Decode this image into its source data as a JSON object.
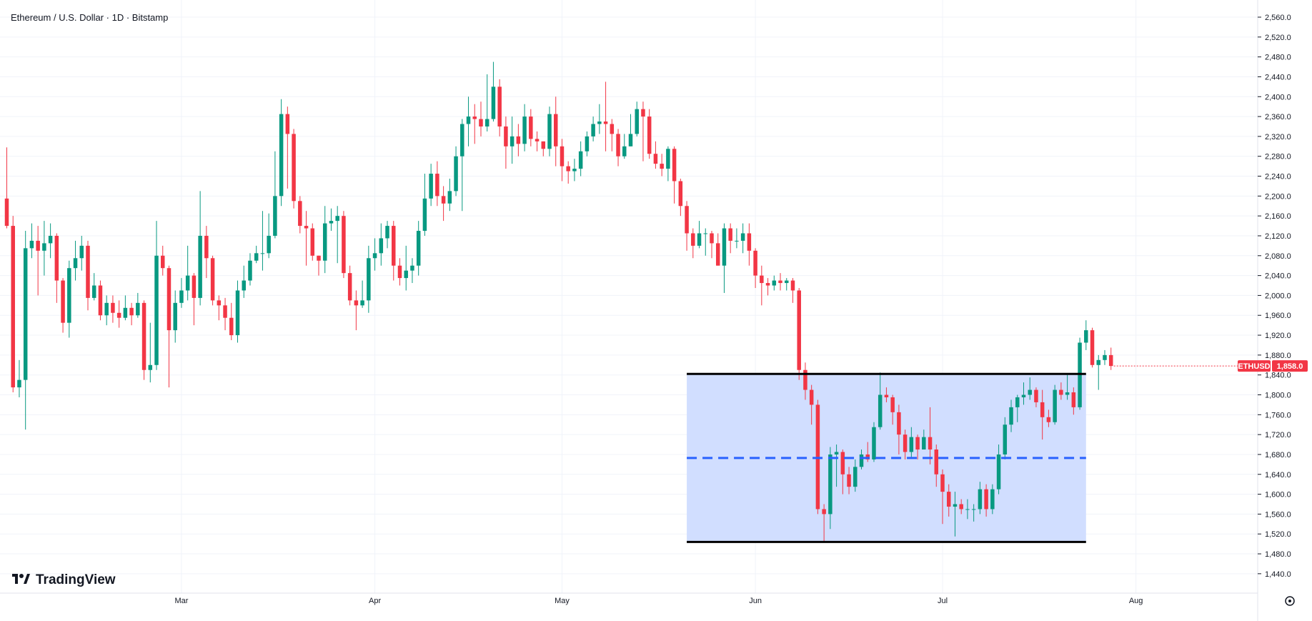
{
  "chart_data": {
    "type": "candlestick",
    "title": "Ethereum / U.S. Dollar · 1D · Bitstamp",
    "brand": "TradingView",
    "ylim": [
      1440,
      2560
    ],
    "y_ticks": [
      1440,
      1480,
      1520,
      1560,
      1600,
      1640,
      1680,
      1720,
      1760,
      1800,
      1840,
      1880,
      1920,
      1960,
      2000,
      2040,
      2080,
      2120,
      2160,
      2200,
      2240,
      2280,
      2320,
      2360,
      2400,
      2440,
      2480,
      2520,
      2560
    ],
    "x_ticks": [
      {
        "label": "Mar",
        "index": 28
      },
      {
        "label": "Apr",
        "index": 59
      },
      {
        "label": "May",
        "index": 89
      },
      {
        "label": "Jun",
        "index": 120
      },
      {
        "label": "Jul",
        "index": 150
      },
      {
        "label": "Aug",
        "index": 181
      }
    ],
    "last_price": {
      "symbol": "ETHUSD",
      "value": "1,858.0",
      "price": 1858
    },
    "colors": {
      "up": "#089981",
      "down": "#f23645",
      "zone_fill": "#cfdcff",
      "zone_line": "#000000",
      "midline": "#2962ff",
      "grid": "#f0f3fa"
    },
    "zone": {
      "start_index": 109,
      "end_index": 173,
      "top": 1842,
      "bottom": 1504,
      "mid": 1673
    },
    "candles": [
      [
        2195,
        2140,
        2298,
        2135
      ],
      [
        2140,
        1815,
        2160,
        1805
      ],
      [
        1815,
        1830,
        1870,
        1795
      ],
      [
        1830,
        2095,
        2130,
        1730
      ],
      [
        2095,
        2110,
        2145,
        2075
      ],
      [
        2110,
        2090,
        2140,
        2000
      ],
      [
        2090,
        2105,
        2150,
        2040
      ],
      [
        2105,
        2120,
        2145,
        2075
      ],
      [
        2120,
        2030,
        2125,
        1985
      ],
      [
        2030,
        1945,
        2035,
        1925
      ],
      [
        1945,
        2055,
        2070,
        1915
      ],
      [
        2055,
        2075,
        2110,
        2030
      ],
      [
        2075,
        2100,
        2120,
        2050
      ],
      [
        2100,
        1995,
        2110,
        1970
      ],
      [
        1995,
        2020,
        2045,
        1990
      ],
      [
        2020,
        1960,
        2030,
        1950
      ],
      [
        1960,
        1985,
        2000,
        1940
      ],
      [
        1985,
        1965,
        2000,
        1945
      ],
      [
        1965,
        1955,
        1990,
        1935
      ],
      [
        1955,
        1975,
        2000,
        1950
      ],
      [
        1975,
        1960,
        1985,
        1940
      ],
      [
        1960,
        1985,
        2005,
        1955
      ],
      [
        1985,
        1850,
        1990,
        1830
      ],
      [
        1850,
        1860,
        1945,
        1825
      ],
      [
        1860,
        2080,
        2150,
        1850
      ],
      [
        2080,
        2055,
        2100,
        2040
      ],
      [
        2055,
        1930,
        2060,
        1815
      ],
      [
        1930,
        1985,
        2010,
        1905
      ],
      [
        1985,
        2010,
        2035,
        1975
      ],
      [
        2010,
        2040,
        2100,
        1990
      ],
      [
        2040,
        1995,
        2045,
        1940
      ],
      [
        1995,
        2120,
        2210,
        1980
      ],
      [
        2120,
        2075,
        2140,
        2035
      ],
      [
        2075,
        1990,
        2080,
        1980
      ],
      [
        1990,
        1980,
        2000,
        1950
      ],
      [
        1980,
        1955,
        1995,
        1930
      ],
      [
        1955,
        1920,
        1985,
        1910
      ],
      [
        1920,
        2010,
        2030,
        1905
      ],
      [
        2010,
        2030,
        2060,
        1995
      ],
      [
        2030,
        2070,
        2085,
        2020
      ],
      [
        2070,
        2085,
        2100,
        2065
      ],
      [
        2085,
        2085,
        2170,
        2050
      ],
      [
        2085,
        2120,
        2165,
        2075
      ],
      [
        2120,
        2200,
        2290,
        2115
      ],
      [
        2200,
        2365,
        2395,
        2180
      ],
      [
        2365,
        2325,
        2380,
        2215
      ],
      [
        2325,
        2190,
        2335,
        2175
      ],
      [
        2190,
        2140,
        2200,
        2125
      ],
      [
        2140,
        2135,
        2170,
        2060
      ],
      [
        2135,
        2080,
        2145,
        2070
      ],
      [
        2080,
        2070,
        2080,
        2040
      ],
      [
        2070,
        2145,
        2180,
        2045
      ],
      [
        2145,
        2150,
        2175,
        2130
      ],
      [
        2150,
        2160,
        2180,
        2065
      ],
      [
        2160,
        2045,
        2170,
        2035
      ],
      [
        2045,
        1990,
        2060,
        1980
      ],
      [
        1990,
        1980,
        2010,
        1930
      ],
      [
        1980,
        1990,
        2030,
        1975
      ],
      [
        1990,
        2075,
        2100,
        1965
      ],
      [
        2075,
        2085,
        2115,
        2050
      ],
      [
        2085,
        2115,
        2145,
        2060
      ],
      [
        2115,
        2140,
        2150,
        2095
      ],
      [
        2140,
        2060,
        2150,
        2030
      ],
      [
        2060,
        2035,
        2075,
        2020
      ],
      [
        2035,
        2050,
        2100,
        2010
      ],
      [
        2050,
        2060,
        2075,
        2025
      ],
      [
        2060,
        2130,
        2150,
        2040
      ],
      [
        2130,
        2195,
        2245,
        2120
      ],
      [
        2195,
        2245,
        2265,
        2180
      ],
      [
        2245,
        2200,
        2270,
        2180
      ],
      [
        2200,
        2185,
        2220,
        2150
      ],
      [
        2185,
        2210,
        2235,
        2170
      ],
      [
        2210,
        2280,
        2300,
        2200
      ],
      [
        2280,
        2345,
        2355,
        2170
      ],
      [
        2345,
        2360,
        2400,
        2300
      ],
      [
        2360,
        2355,
        2385,
        2305
      ],
      [
        2355,
        2340,
        2390,
        2320
      ],
      [
        2340,
        2355,
        2445,
        2330
      ],
      [
        2355,
        2420,
        2470,
        2350
      ],
      [
        2420,
        2340,
        2435,
        2320
      ],
      [
        2340,
        2300,
        2360,
        2255
      ],
      [
        2300,
        2320,
        2360,
        2265
      ],
      [
        2320,
        2305,
        2345,
        2280
      ],
      [
        2305,
        2360,
        2385,
        2290
      ],
      [
        2360,
        2315,
        2375,
        2300
      ],
      [
        2315,
        2310,
        2330,
        2290
      ],
      [
        2310,
        2295,
        2310,
        2280
      ],
      [
        2295,
        2365,
        2380,
        2280
      ],
      [
        2365,
        2300,
        2400,
        2260
      ],
      [
        2300,
        2260,
        2315,
        2230
      ],
      [
        2260,
        2250,
        2270,
        2225
      ],
      [
        2250,
        2255,
        2275,
        2230
      ],
      [
        2255,
        2290,
        2310,
        2240
      ],
      [
        2290,
        2320,
        2330,
        2280
      ],
      [
        2320,
        2345,
        2360,
        2310
      ],
      [
        2345,
        2350,
        2385,
        2325
      ],
      [
        2350,
        2345,
        2430,
        2290
      ],
      [
        2345,
        2325,
        2355,
        2290
      ],
      [
        2325,
        2280,
        2335,
        2260
      ],
      [
        2280,
        2300,
        2325,
        2275
      ],
      [
        2300,
        2325,
        2365,
        2300
      ],
      [
        2325,
        2375,
        2390,
        2320
      ],
      [
        2375,
        2360,
        2390,
        2270
      ],
      [
        2360,
        2285,
        2375,
        2275
      ],
      [
        2285,
        2265,
        2310,
        2255
      ],
      [
        2265,
        2255,
        2285,
        2240
      ],
      [
        2255,
        2295,
        2300,
        2230
      ],
      [
        2295,
        2230,
        2300,
        2185
      ],
      [
        2230,
        2180,
        2235,
        2160
      ],
      [
        2180,
        2125,
        2190,
        2090
      ],
      [
        2125,
        2100,
        2135,
        2075
      ],
      [
        2100,
        2125,
        2150,
        2095
      ],
      [
        2125,
        2125,
        2135,
        2080
      ],
      [
        2125,
        2105,
        2130,
        2075
      ],
      [
        2105,
        2060,
        2125,
        2060
      ],
      [
        2060,
        2135,
        2145,
        2005
      ],
      [
        2135,
        2110,
        2145,
        2085
      ],
      [
        2110,
        2110,
        2135,
        2095
      ],
      [
        2110,
        2125,
        2145,
        2085
      ],
      [
        2125,
        2090,
        2145,
        2060
      ],
      [
        2090,
        2040,
        2095,
        2015
      ],
      [
        2040,
        2025,
        2060,
        1980
      ],
      [
        2025,
        2020,
        2035,
        2000
      ],
      [
        2020,
        2030,
        2040,
        2010
      ],
      [
        2030,
        2025,
        2045,
        2010
      ],
      [
        2025,
        2030,
        2035,
        2010
      ],
      [
        2030,
        2010,
        2035,
        1985
      ],
      [
        2010,
        1850,
        2015,
        1830
      ],
      [
        1850,
        1810,
        1865,
        1790
      ],
      [
        1810,
        1780,
        1820,
        1740
      ],
      [
        1780,
        1570,
        1790,
        1560
      ],
      [
        1570,
        1560,
        1580,
        1505
      ],
      [
        1560,
        1680,
        1695,
        1530
      ],
      [
        1680,
        1685,
        1700,
        1615
      ],
      [
        1685,
        1640,
        1690,
        1600
      ],
      [
        1640,
        1615,
        1655,
        1600
      ],
      [
        1615,
        1655,
        1670,
        1605
      ],
      [
        1655,
        1680,
        1690,
        1650
      ],
      [
        1680,
        1670,
        1705,
        1665
      ],
      [
        1670,
        1735,
        1745,
        1665
      ],
      [
        1735,
        1800,
        1845,
        1730
      ],
      [
        1800,
        1795,
        1815,
        1785
      ],
      [
        1795,
        1765,
        1800,
        1740
      ],
      [
        1765,
        1720,
        1780,
        1680
      ],
      [
        1720,
        1685,
        1730,
        1670
      ],
      [
        1685,
        1715,
        1735,
        1675
      ],
      [
        1715,
        1690,
        1720,
        1670
      ],
      [
        1690,
        1715,
        1730,
        1700
      ],
      [
        1715,
        1690,
        1775,
        1660
      ],
      [
        1690,
        1640,
        1700,
        1615
      ],
      [
        1640,
        1605,
        1650,
        1540
      ],
      [
        1605,
        1575,
        1620,
        1555
      ],
      [
        1575,
        1580,
        1605,
        1515
      ],
      [
        1580,
        1570,
        1590,
        1560
      ],
      [
        1570,
        1570,
        1590,
        1550
      ],
      [
        1570,
        1570,
        1580,
        1545
      ],
      [
        1570,
        1610,
        1625,
        1560
      ],
      [
        1610,
        1570,
        1620,
        1555
      ],
      [
        1570,
        1610,
        1620,
        1560
      ],
      [
        1610,
        1680,
        1700,
        1600
      ],
      [
        1680,
        1740,
        1755,
        1670
      ],
      [
        1740,
        1775,
        1790,
        1725
      ],
      [
        1775,
        1795,
        1800,
        1745
      ],
      [
        1795,
        1800,
        1825,
        1780
      ],
      [
        1800,
        1810,
        1835,
        1790
      ],
      [
        1810,
        1785,
        1815,
        1775
      ],
      [
        1785,
        1755,
        1810,
        1710
      ],
      [
        1755,
        1745,
        1770,
        1735
      ],
      [
        1745,
        1810,
        1820,
        1740
      ],
      [
        1810,
        1800,
        1825,
        1790
      ],
      [
        1800,
        1805,
        1840,
        1790
      ],
      [
        1805,
        1775,
        1815,
        1760
      ],
      [
        1775,
        1905,
        1915,
        1770
      ],
      [
        1905,
        1930,
        1950,
        1890
      ],
      [
        1930,
        1860,
        1935,
        1855
      ],
      [
        1860,
        1870,
        1880,
        1810
      ],
      [
        1870,
        1880,
        1890,
        1860
      ],
      [
        1880,
        1858,
        1895,
        1850
      ]
    ]
  }
}
